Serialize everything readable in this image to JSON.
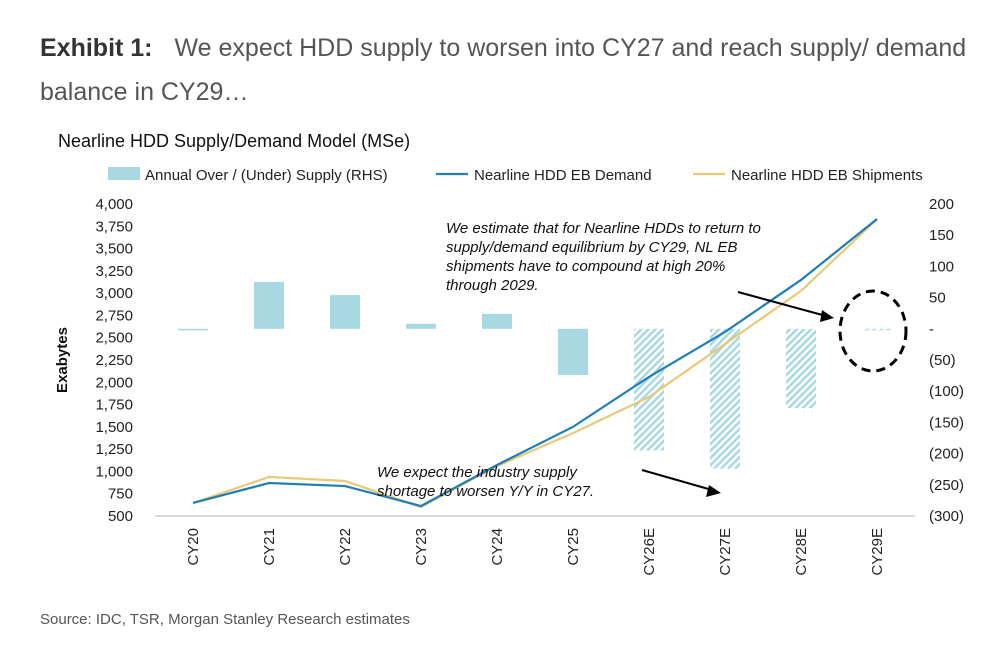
{
  "exhibit": {
    "label": "Exhibit 1:",
    "title": "We expect HDD supply to worsen into CY27 and reach supply/ demand balance in CY29…"
  },
  "source": "Source: IDC, TSR, Morgan Stanley Research estimates",
  "chart_data": {
    "type": "bar+line",
    "title": "Nearline HDD Supply/Demand Model (MSe)",
    "ylabel": "Exabytes",
    "categories": [
      "CY20",
      "CY21",
      "CY22",
      "CY23",
      "CY24",
      "CY25",
      "CY26E",
      "CY27E",
      "CY28E",
      "CY29E"
    ],
    "ylim": [
      500,
      4000
    ],
    "yticks": [
      "4,000",
      "3,750",
      "3,500",
      "3,250",
      "3,000",
      "2,750",
      "2,500",
      "2,250",
      "2,000",
      "1,750",
      "1,500",
      "1,250",
      "1,000",
      "750",
      "500"
    ],
    "y2lim": [
      -300,
      200
    ],
    "y2ticks": [
      "200",
      "150",
      "100",
      "50",
      "-",
      "(50)",
      "(100)",
      "(150)",
      "(200)",
      "(250)",
      "(300)"
    ],
    "legend_position": "top",
    "series": [
      {
        "name": "Annual Over / (Under) Supply (RHS)",
        "type": "bar",
        "axis": "right",
        "color": "#a8d8e2",
        "values": [
          0,
          75,
          54,
          8,
          24,
          -74,
          -195,
          -224,
          -127,
          -2
        ],
        "hatched_from_index": 6
      },
      {
        "name": "Nearline HDD EB Demand",
        "type": "line",
        "axis": "left",
        "color": "#1f7fb5",
        "values": [
          646,
          870,
          836,
          612,
          1072,
          1500,
          2060,
          2565,
          3148,
          3832
        ]
      },
      {
        "name": "Nearline HDD EB Shipments",
        "type": "line",
        "axis": "left",
        "color": "#e8c97a",
        "values": [
          646,
          938,
          893,
          600,
          1060,
          1430,
          1835,
          2430,
          3025,
          3830
        ]
      }
    ],
    "annotations": [
      {
        "text": [
          "We estimate that for Nearline HDDs to return to",
          "supply/demand equilibrium by CY29, NL EB",
          "shipments have to compound at high 20%",
          "through 2029."
        ]
      },
      {
        "text": [
          "We expect the industry supply",
          "shortage to worsen Y/Y in CY27."
        ]
      }
    ]
  }
}
